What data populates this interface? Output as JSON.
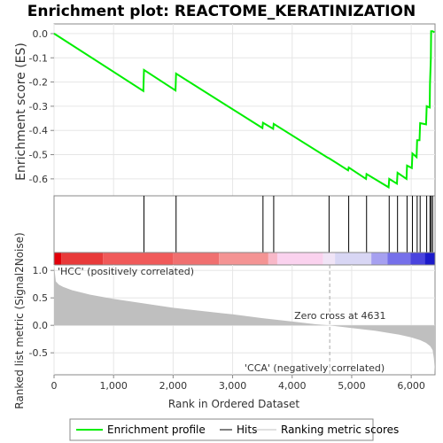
{
  "chart_data": {
    "type": "line",
    "title": "Enrichment plot: REACTOME_KERATINIZATION",
    "ylabel_top": "Enrichment score (ES)",
    "ylabel_bottom": "Ranked list metric (Signal2Noise)",
    "xlabel": "Rank in Ordered Dataset",
    "xlim": [
      0,
      6400
    ],
    "ylim_es": [
      -0.67,
      0.04
    ],
    "ylim_metric": [
      -0.9,
      1.1
    ],
    "x_ticks": [
      0,
      1000,
      2000,
      3000,
      4000,
      5000,
      6000
    ],
    "x_tick_labels": [
      "0",
      "1,000",
      "2,000",
      "3,000",
      "4,000",
      "5,000",
      "6,000"
    ],
    "es_ticks": [
      0.0,
      -0.1,
      -0.2,
      -0.3,
      -0.4,
      -0.5,
      -0.6
    ],
    "es_tick_labels": [
      "0.0",
      "-0.1",
      "-0.2",
      "-0.3",
      "-0.4",
      "-0.5",
      "-0.6"
    ],
    "metric_ticks": [
      1.0,
      0.5,
      0.0,
      -0.5
    ],
    "metric_tick_labels": [
      "1.0",
      "0.5",
      "0.0",
      "-0.5"
    ],
    "enrichment_profile": {
      "x": [
        0,
        1500,
        1510,
        2040,
        2050,
        3500,
        3510,
        3680,
        3690,
        4600,
        4620,
        4940,
        4950,
        5240,
        5250,
        5620,
        5630,
        5760,
        5770,
        5920,
        5930,
        6010,
        6020,
        6090,
        6100,
        6140,
        6150,
        6250,
        6260,
        6310,
        6315,
        6330,
        6335,
        6360,
        6390
      ],
      "y": [
        0.0,
        -0.237,
        -0.15,
        -0.235,
        -0.165,
        -0.39,
        -0.368,
        -0.393,
        -0.373,
        -0.513,
        -0.515,
        -0.565,
        -0.553,
        -0.6,
        -0.58,
        -0.635,
        -0.6,
        -0.62,
        -0.575,
        -0.6,
        -0.545,
        -0.555,
        -0.495,
        -0.51,
        -0.44,
        -0.44,
        -0.37,
        -0.375,
        -0.3,
        -0.305,
        -0.21,
        -0.1,
        0.01,
        0.01,
        0.005
      ]
    },
    "hits": [
      1510,
      2050,
      3510,
      3690,
      4620,
      4950,
      5250,
      5630,
      5770,
      5930,
      6020,
      6100,
      6150,
      6260,
      6315,
      6335,
      6360
    ],
    "heat_segments": [
      {
        "x0": 0,
        "x1": 120,
        "color": "#e2000a"
      },
      {
        "x0": 120,
        "x1": 820,
        "color": "#e83a3a"
      },
      {
        "x0": 820,
        "x1": 2000,
        "color": "#f05a5a"
      },
      {
        "x0": 2000,
        "x1": 2770,
        "color": "#f07070"
      },
      {
        "x0": 2770,
        "x1": 3600,
        "color": "#f49494"
      },
      {
        "x0": 3600,
        "x1": 3750,
        "color": "#f8b8c8"
      },
      {
        "x0": 3750,
        "x1": 4520,
        "color": "#fad2ee"
      },
      {
        "x0": 4520,
        "x1": 4720,
        "color": "#f0e4f6"
      },
      {
        "x0": 4720,
        "x1": 5330,
        "color": "#d8d6f4"
      },
      {
        "x0": 5330,
        "x1": 5600,
        "color": "#a6a0f0"
      },
      {
        "x0": 5600,
        "x1": 5990,
        "color": "#7670ea"
      },
      {
        "x0": 5990,
        "x1": 6230,
        "color": "#4a44de"
      },
      {
        "x0": 6230,
        "x1": 6400,
        "color": "#1c1aca"
      }
    ],
    "metric_curve": {
      "x": [
        0,
        30,
        80,
        150,
        300,
        600,
        1000,
        1500,
        2000,
        2500,
        3000,
        3500,
        4000,
        4400,
        4631,
        5000,
        5400,
        5800,
        6000,
        6150,
        6250,
        6320,
        6360,
        6380,
        6400
      ],
      "y": [
        1.1,
        0.8,
        0.74,
        0.7,
        0.64,
        0.56,
        0.48,
        0.4,
        0.32,
        0.26,
        0.2,
        0.13,
        0.07,
        0.02,
        0.0,
        -0.05,
        -0.1,
        -0.17,
        -0.22,
        -0.27,
        -0.32,
        -0.38,
        -0.45,
        -0.6,
        -0.85
      ]
    },
    "zero_cross_label": "Zero cross at 4631",
    "zero_cross_x": 4631,
    "pos_label": "'HCC' (positively correlated)",
    "neg_label": "'CCA' (negatively correlated)",
    "legend": [
      {
        "label": "Enrichment profile",
        "color": "#00ee00"
      },
      {
        "label": "Hits",
        "color": "#000000"
      },
      {
        "label": "Ranking metric scores",
        "color": "#c0c0c0"
      }
    ],
    "colors": {
      "profile": "#00ee00",
      "metric_fill": "#bfbfbf",
      "pos_label": "#dd0000",
      "neg_label": "#2222cc"
    }
  }
}
